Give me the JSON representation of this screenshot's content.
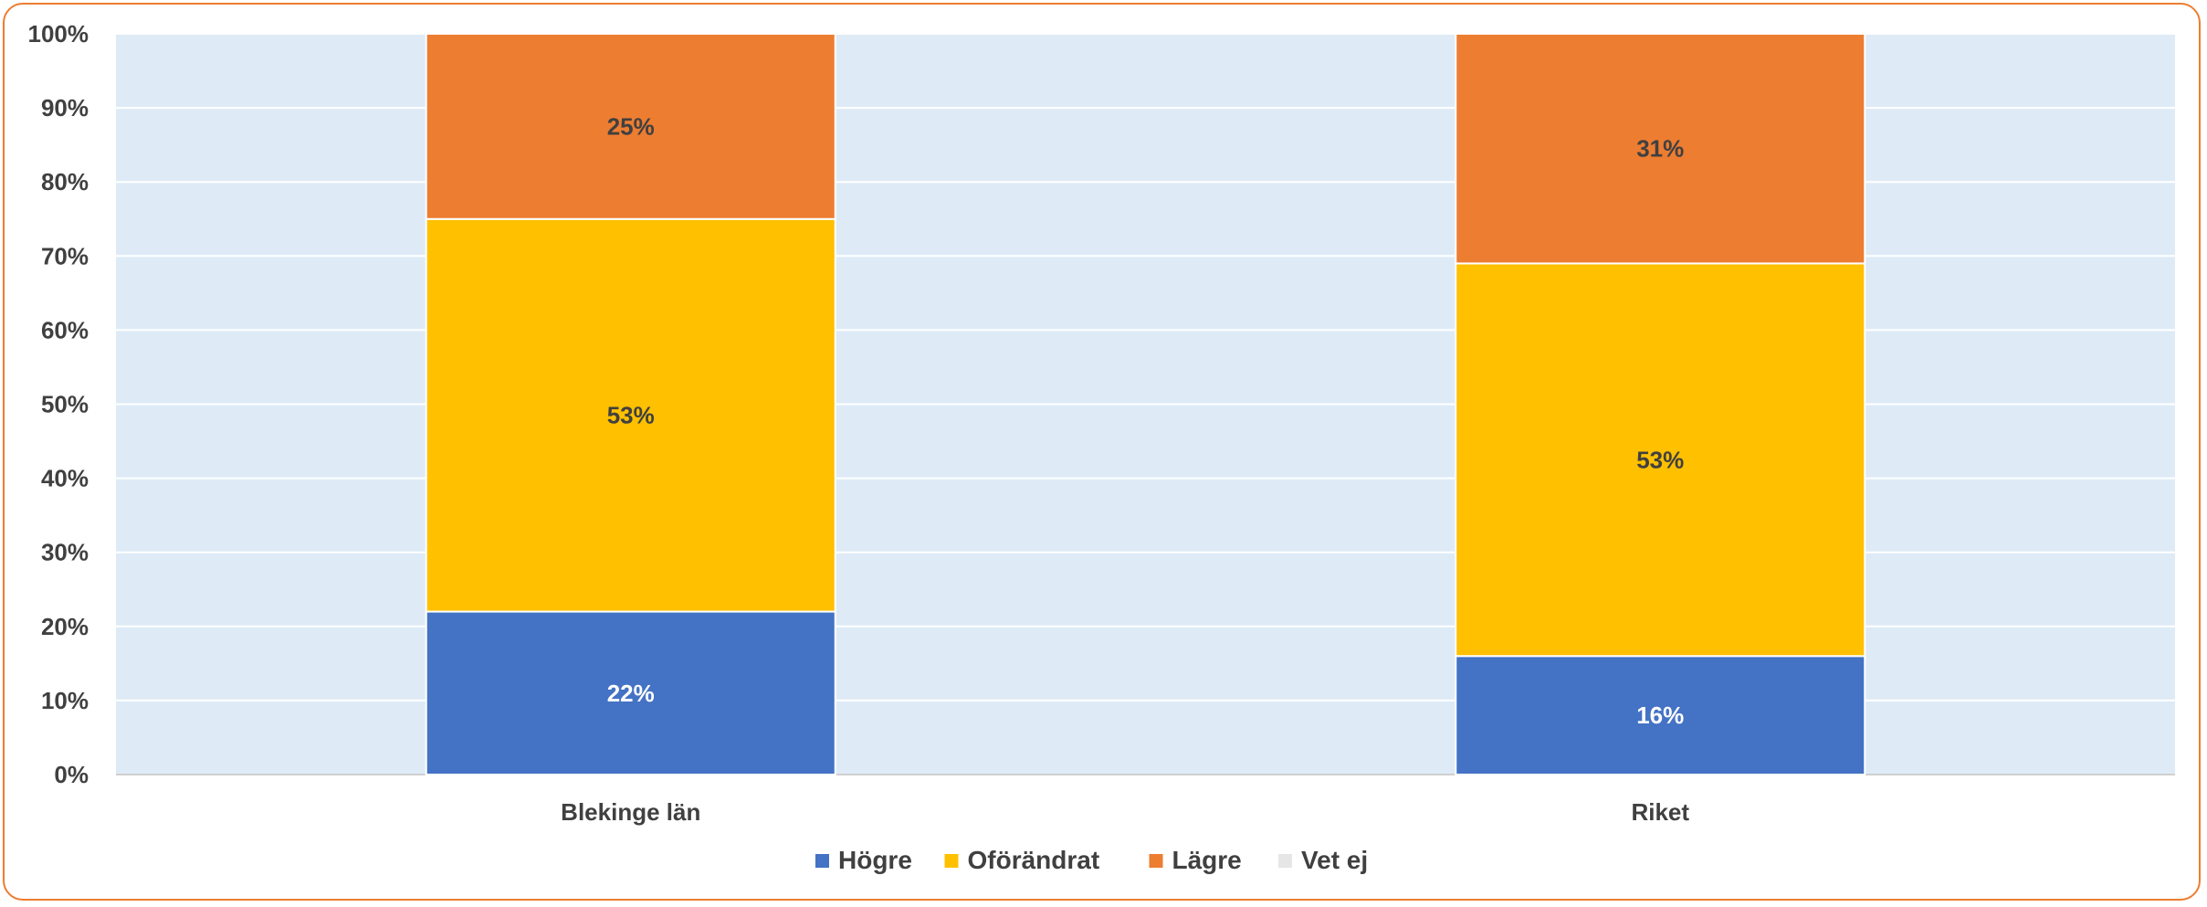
{
  "chart_data": {
    "type": "bar",
    "stacked": true,
    "percent": true,
    "categories": [
      "Blekinge län",
      "Riket"
    ],
    "series": [
      {
        "name": "Högre",
        "values": [
          22,
          16
        ],
        "labels": [
          "22%",
          "16%"
        ],
        "color": "#4472C4",
        "label_color": "#FFFFFF"
      },
      {
        "name": "Oförändrat",
        "values": [
          53,
          53
        ],
        "labels": [
          "53%",
          "53%"
        ],
        "color": "#FFC000",
        "label_color": "#404040"
      },
      {
        "name": "Lägre",
        "values": [
          25,
          31
        ],
        "labels": [
          "25%",
          "31%"
        ],
        "color": "#ED7D31",
        "label_color": "#404040"
      },
      {
        "name": "Vet ej",
        "values": [
          0,
          0
        ],
        "labels": [
          "",
          ""
        ],
        "color": "#E7E6E6",
        "label_color": "#404040"
      }
    ],
    "ylim": [
      0,
      100
    ],
    "yticks": [
      0,
      10,
      20,
      30,
      40,
      50,
      60,
      70,
      80,
      90,
      100
    ],
    "ytick_labels": [
      "0%",
      "10%",
      "20%",
      "30%",
      "40%",
      "50%",
      "60%",
      "70%",
      "80%",
      "90%",
      "100%"
    ],
    "grid": true,
    "legend_position": "bottom",
    "plot_background": "#DEEBF7",
    "border_color": "#ED7D31"
  }
}
